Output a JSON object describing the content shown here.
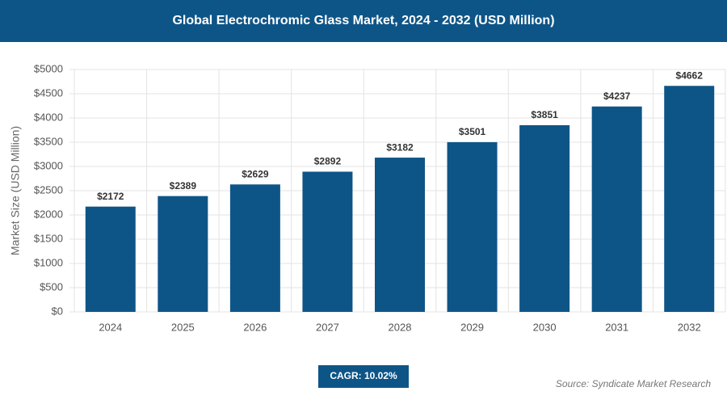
{
  "chart_data": {
    "type": "bar",
    "title": "Global Electrochromic Glass Market, 2024 - 2032 (USD Million)",
    "y_label": "Market Size (USD Million)",
    "categories": [
      "2024",
      "2025",
      "2026",
      "2027",
      "2028",
      "2029",
      "2030",
      "2031",
      "2032"
    ],
    "values": [
      2172,
      2389,
      2629,
      2892,
      3182,
      3501,
      3851,
      4237,
      4662
    ],
    "value_labels": [
      "$2172",
      "$2389",
      "$2629",
      "$2892",
      "$3182",
      "$3501",
      "$3851",
      "$4237",
      "$4662"
    ],
    "color": "#0e5587",
    "ylim": [
      0,
      5000
    ],
    "yticks": [
      {
        "value": 0,
        "label": "$0"
      },
      {
        "value": 500,
        "label": "$500"
      },
      {
        "value": 1000,
        "label": "$1000"
      },
      {
        "value": 1500,
        "label": "$1500"
      },
      {
        "value": 2000,
        "label": "$2000"
      },
      {
        "value": 2500,
        "label": "$2500"
      },
      {
        "value": 3000,
        "label": "$3000"
      },
      {
        "value": 3500,
        "label": "$3500"
      },
      {
        "value": 4000,
        "label": "$4000"
      },
      {
        "value": 4500,
        "label": "$4500"
      },
      {
        "value": 5000,
        "label": "$5000"
      }
    ],
    "grid": true,
    "cagr_label": "CAGR: 10.02%",
    "source": "Source: Syndicate Market Research"
  }
}
